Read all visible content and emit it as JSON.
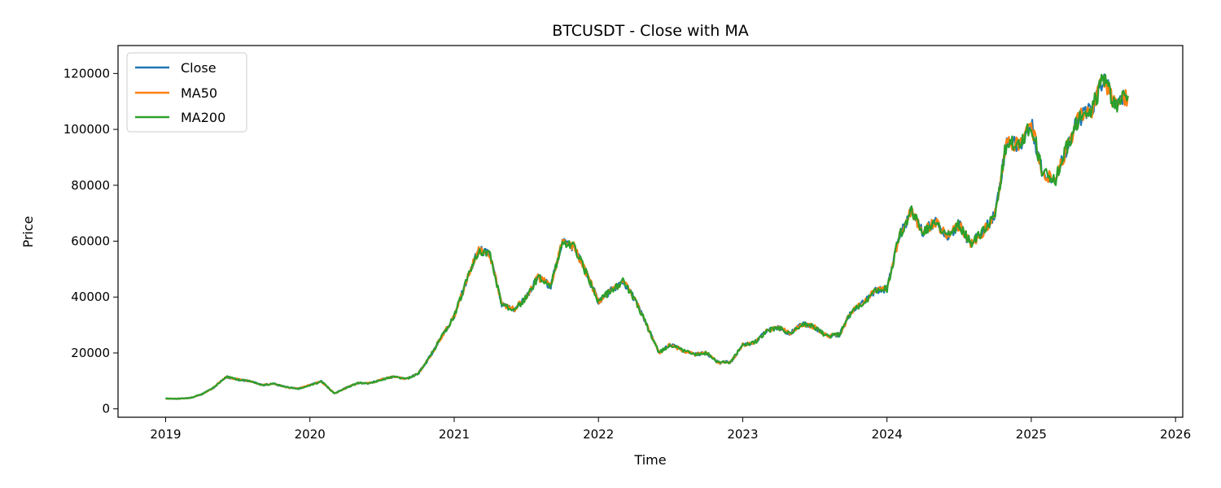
{
  "chart_data": {
    "type": "line",
    "title": "BTCUSDT - Close with MA",
    "xlabel": "Time",
    "ylabel": "Price",
    "xlim": [
      2018.67,
      2026.05
    ],
    "ylim": [
      -3000,
      130000
    ],
    "xticks": [
      2019,
      2020,
      2021,
      2022,
      2023,
      2024,
      2025,
      2026
    ],
    "xtick_labels": [
      "2019",
      "2020",
      "2021",
      "2022",
      "2023",
      "2024",
      "2025",
      "2026"
    ],
    "yticks": [
      0,
      20000,
      40000,
      60000,
      80000,
      100000,
      120000
    ],
    "ytick_labels": [
      "0",
      "20000",
      "40000",
      "60000",
      "80000",
      "100000",
      "120000"
    ],
    "grid": false,
    "legend_position": "top-left",
    "x": [
      "2019-01",
      "2019-02",
      "2019-03",
      "2019-04",
      "2019-05",
      "2019-06",
      "2019-07",
      "2019-08",
      "2019-09",
      "2019-10",
      "2019-11",
      "2019-12",
      "2020-01",
      "2020-02",
      "2020-03",
      "2020-04",
      "2020-05",
      "2020-06",
      "2020-07",
      "2020-08",
      "2020-09",
      "2020-10",
      "2020-11",
      "2020-12",
      "2021-01",
      "2021-02",
      "2021-03",
      "2021-04",
      "2021-05",
      "2021-06",
      "2021-07",
      "2021-08",
      "2021-09",
      "2021-10",
      "2021-11",
      "2021-12",
      "2022-01",
      "2022-02",
      "2022-03",
      "2022-04",
      "2022-05",
      "2022-06",
      "2022-07",
      "2022-08",
      "2022-09",
      "2022-10",
      "2022-11",
      "2022-12",
      "2023-01",
      "2023-02",
      "2023-03",
      "2023-04",
      "2023-05",
      "2023-06",
      "2023-07",
      "2023-08",
      "2023-09",
      "2023-10",
      "2023-11",
      "2023-12",
      "2024-01",
      "2024-02",
      "2024-03",
      "2024-04",
      "2024-05",
      "2024-06",
      "2024-07",
      "2024-08",
      "2024-09",
      "2024-10",
      "2024-11",
      "2024-12",
      "2025-01",
      "2025-02",
      "2025-03",
      "2025-04",
      "2025-05",
      "2025-06",
      "2025-07",
      "2025-08",
      "2025-09"
    ],
    "x_numeric": [
      2019.0,
      2019.08,
      2019.17,
      2019.25,
      2019.33,
      2019.42,
      2019.5,
      2019.58,
      2019.67,
      2019.75,
      2019.83,
      2019.92,
      2020.0,
      2020.08,
      2020.17,
      2020.25,
      2020.33,
      2020.42,
      2020.5,
      2020.58,
      2020.67,
      2020.75,
      2020.83,
      2020.92,
      2021.0,
      2021.08,
      2021.17,
      2021.25,
      2021.33,
      2021.42,
      2021.5,
      2021.58,
      2021.67,
      2021.75,
      2021.83,
      2021.92,
      2022.0,
      2022.08,
      2022.17,
      2022.25,
      2022.33,
      2022.42,
      2022.5,
      2022.58,
      2022.67,
      2022.75,
      2022.83,
      2022.92,
      2023.0,
      2023.08,
      2023.17,
      2023.25,
      2023.33,
      2023.42,
      2023.5,
      2023.58,
      2023.67,
      2023.75,
      2023.83,
      2023.92,
      2024.0,
      2024.08,
      2024.17,
      2024.25,
      2024.33,
      2024.42,
      2024.5,
      2024.58,
      2024.67,
      2024.75,
      2024.83,
      2024.92,
      2025.0,
      2025.08,
      2025.17,
      2025.25,
      2025.33,
      2025.42,
      2025.5,
      2025.58,
      2025.67
    ],
    "series": [
      {
        "name": "Close",
        "color": "#1f77b4",
        "values": [
          3700,
          3600,
          3900,
          5200,
          7500,
          11500,
          10500,
          10000,
          8500,
          9000,
          7800,
          7200,
          8500,
          9800,
          5500,
          7500,
          9200,
          9200,
          10500,
          11500,
          10800,
          12500,
          18500,
          26500,
          33000,
          45000,
          57000,
          55000,
          37000,
          35500,
          40000,
          47000,
          44000,
          60000,
          58000,
          48000,
          38500,
          42000,
          45500,
          39500,
          30500,
          20000,
          23000,
          21000,
          19500,
          20000,
          16500,
          16800,
          23000,
          23500,
          28000,
          29000,
          27000,
          30500,
          29200,
          26000,
          26500,
          34500,
          37700,
          42200,
          43000,
          61000,
          71000,
          63000,
          67000,
          62000,
          66000,
          59000,
          63500,
          70000,
          96000,
          94000,
          102000,
          84000,
          82500,
          94000,
          104000,
          107000,
          118000,
          109000,
          112000
        ]
      },
      {
        "name": "MA50",
        "color": "#ff7f0e",
        "values": [
          3700,
          3600,
          3900,
          5200,
          7500,
          11500,
          10500,
          10000,
          8500,
          9000,
          7800,
          7200,
          8500,
          9800,
          5500,
          7500,
          9200,
          9200,
          10500,
          11500,
          10800,
          12500,
          18500,
          26500,
          33000,
          45000,
          57000,
          55000,
          37000,
          35500,
          40000,
          47000,
          44000,
          60000,
          58000,
          48000,
          38500,
          42000,
          45500,
          39500,
          30500,
          20000,
          23000,
          21000,
          19500,
          20000,
          16500,
          16800,
          23000,
          23500,
          28000,
          29000,
          27000,
          30500,
          29200,
          26000,
          26500,
          34500,
          37700,
          42200,
          43000,
          61000,
          71000,
          63000,
          67000,
          62000,
          66000,
          59000,
          63500,
          70000,
          96000,
          94000,
          102000,
          84000,
          82500,
          94000,
          104000,
          107000,
          118000,
          109000,
          112000
        ]
      },
      {
        "name": "MA200",
        "color": "#2ca02c",
        "values": [
          3700,
          3600,
          3900,
          5200,
          7500,
          11500,
          10500,
          10000,
          8500,
          9000,
          7800,
          7200,
          8500,
          9800,
          5500,
          7500,
          9200,
          9200,
          10500,
          11500,
          10800,
          12500,
          18500,
          26500,
          33000,
          45000,
          57000,
          55000,
          37000,
          35500,
          40000,
          47000,
          44000,
          60000,
          58000,
          48000,
          38500,
          42000,
          45500,
          39500,
          30500,
          20000,
          23000,
          21000,
          19500,
          20000,
          16500,
          16800,
          23000,
          23500,
          28000,
          29000,
          27000,
          30500,
          29200,
          26000,
          26500,
          34500,
          37700,
          42200,
          43000,
          61000,
          71000,
          63000,
          67000,
          62000,
          66000,
          59000,
          63500,
          70000,
          96000,
          94000,
          102000,
          84000,
          82500,
          94000,
          104000,
          107000,
          118000,
          109000,
          112000
        ]
      }
    ]
  }
}
